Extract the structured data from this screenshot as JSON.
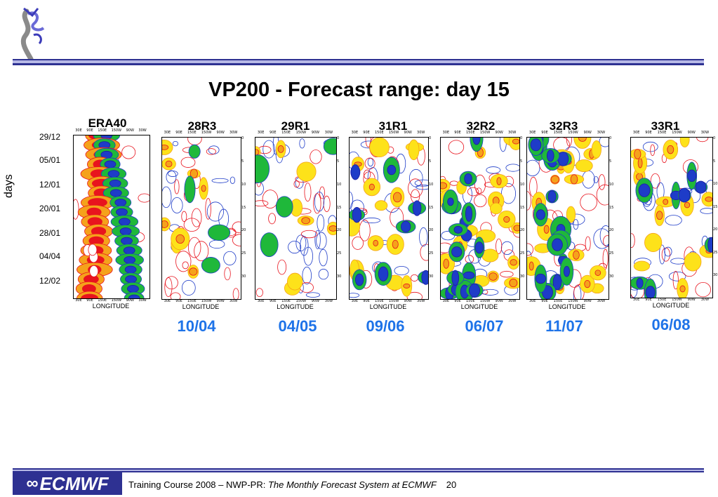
{
  "title": "VP200 - Forecast range: day 15",
  "y_axis_label": "days",
  "date_labels": [
    "29/12",
    "05/01",
    "12/01",
    "20/01",
    "28/01",
    "04/04",
    "12/02"
  ],
  "lon_ticks": [
    "30E",
    "90E",
    "150E",
    "150W",
    "90W",
    "30W"
  ],
  "lon_label": "LONGITUDE",
  "panels": [
    {
      "title": "ERA40",
      "date": ""
    },
    {
      "title": "28R3",
      "date": "10/04"
    },
    {
      "title": "29R1",
      "date": "04/05"
    },
    {
      "title": "31R1",
      "date": "09/06"
    },
    {
      "title": "32R2",
      "date": "06/07"
    },
    {
      "title": "32R3",
      "date": "11/07"
    },
    {
      "title": "33R1",
      "date": "06/08"
    }
  ],
  "side_ticks": [
    "0",
    "5",
    "10",
    "15",
    "20",
    "25",
    "30"
  ],
  "colors": {
    "red": "#e8141e",
    "orange": "#f5a21b",
    "yellow": "#fde21a",
    "green": "#1fb83a",
    "blue": "#1e3cc8",
    "darkblue": "#1c1ca0",
    "nav": "#2e3192"
  },
  "footer": {
    "org": "ECMWF",
    "text_prefix": "Training Course 2008 – NWP-PR: ",
    "text_italic": "The Monthly Forecast System at ECMWF",
    "page": "20"
  }
}
